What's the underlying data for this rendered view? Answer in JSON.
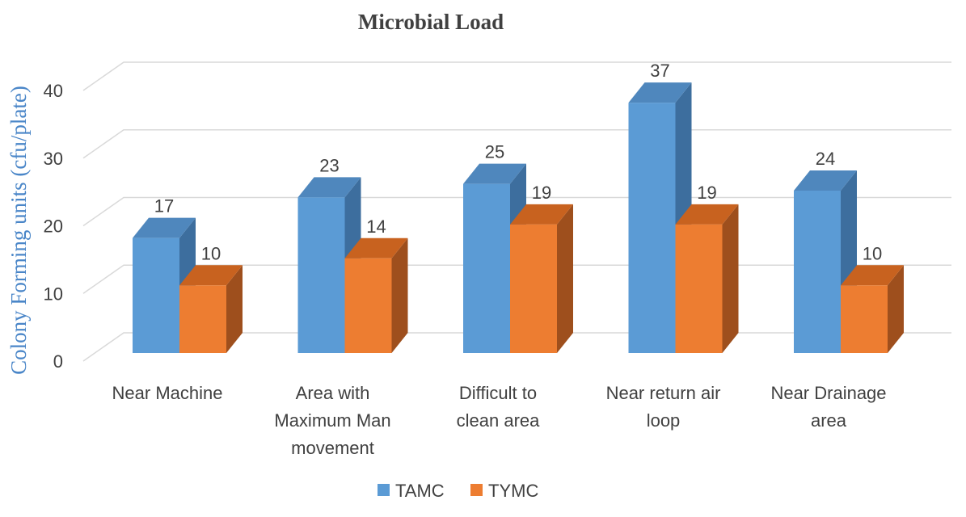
{
  "chart_data": {
    "type": "bar",
    "title": "Microbial Load",
    "xlabel": "",
    "ylabel": "Colony Forming units (cfu/plate)",
    "categories": [
      [
        "Near Machine"
      ],
      [
        "Area with",
        "Maximum Man",
        "movement"
      ],
      [
        "Difficult to",
        "clean area"
      ],
      [
        "Near return air",
        "loop"
      ],
      [
        "Near Drainage",
        "area"
      ]
    ],
    "series": [
      {
        "name": "TAMC",
        "values": [
          17,
          23,
          25,
          37,
          24
        ],
        "color": "#5b9bd5",
        "side_color": "#3d6e9e",
        "top_color": "#4f87bd"
      },
      {
        "name": "TYMC",
        "values": [
          10,
          14,
          19,
          19,
          10
        ],
        "color": "#ed7d31",
        "side_color": "#9e4f1d",
        "top_color": "#c8621f"
      }
    ],
    "ylim": [
      0,
      40
    ],
    "yticks": [
      0,
      10,
      20,
      30,
      40
    ],
    "grid": true,
    "legend": "bottom",
    "style": "3d-clustered-column"
  }
}
